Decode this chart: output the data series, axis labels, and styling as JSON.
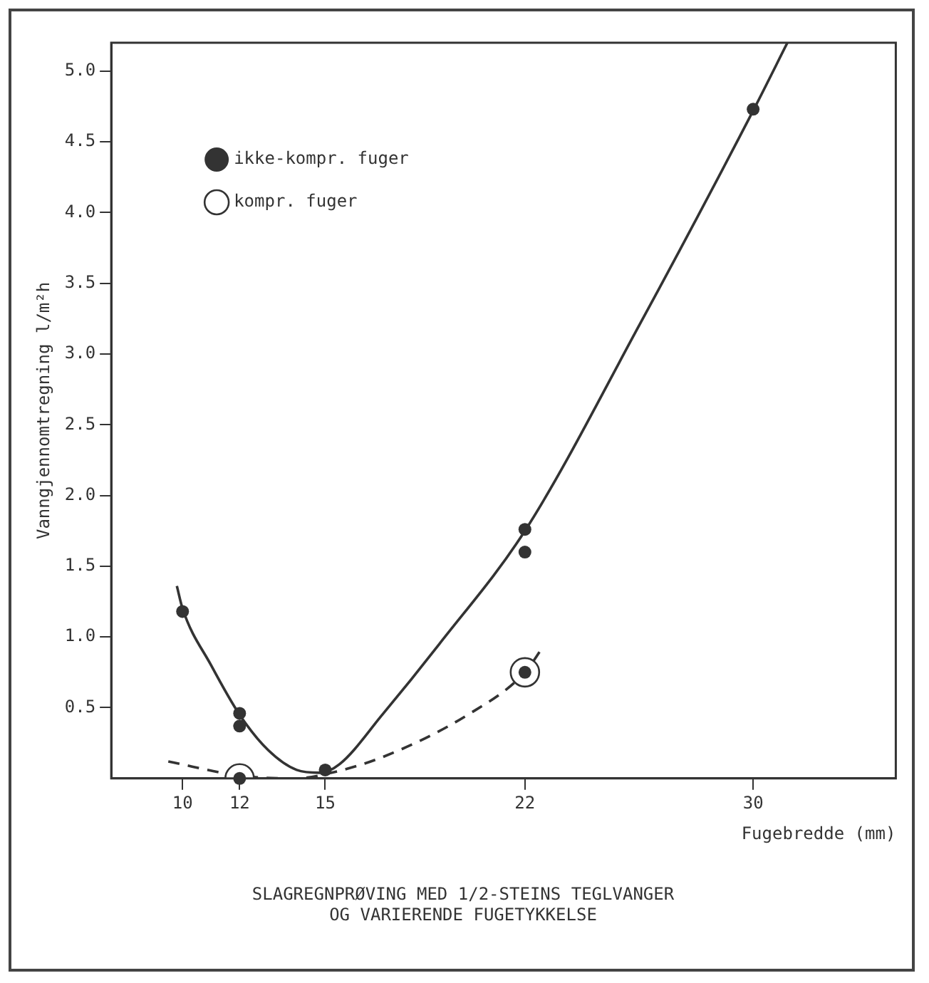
{
  "chart_data": {
    "type": "scatter",
    "title": "SLAGREGNPRØVING MED 1/2-STEINS TEGLVANGER\nOG VARIERENDE FUGETYKKELSE",
    "xlabel": "Fugebredde (mm)",
    "ylabel": "Vanngjennomtregning l/m²h",
    "xlim": [
      7.5,
      35
    ],
    "xticks": [
      10,
      12,
      15,
      22,
      30
    ],
    "ylim": [
      0,
      5.2
    ],
    "yticks": [
      {
        "value": 0.5,
        "label": "0.5"
      },
      {
        "value": 1,
        "label": "1.0"
      },
      {
        "value": 1.5,
        "label": "1.5"
      },
      {
        "value": 2,
        "label": "2.0"
      },
      {
        "value": 2.5,
        "label": "2.5"
      },
      {
        "value": 3,
        "label": "3.0"
      },
      {
        "value": 3.5,
        "label": "3.5"
      },
      {
        "value": 4,
        "label": "4.0"
      },
      {
        "value": 4.5,
        "label": "4.5"
      },
      {
        "value": 5,
        "label": "5.0"
      }
    ],
    "grid": false,
    "legend": "top left",
    "series": [
      {
        "name": "ikke-kompr. fuger",
        "type": "scatter",
        "marker": "circle",
        "color": "#333333",
        "x": [
          10,
          12,
          12,
          15,
          22,
          22,
          30
        ],
        "values": [
          1.18,
          0.46,
          0.37,
          0.06,
          1.76,
          1.6,
          4.73
        ]
      },
      {
        "name": "kompr. fuger",
        "type": "scatter",
        "marker": "circle",
        "color": "#333333",
        "x": [
          12,
          22
        ],
        "values": [
          0.0,
          0.75
        ]
      },
      {
        "type": "line",
        "marker": "none",
        "line_style": "solid",
        "color": "#333333",
        "x": [
          9.8,
          10,
          11,
          12,
          13,
          14,
          14.8,
          15.5,
          17,
          19,
          22,
          26,
          30,
          31.2
        ],
        "values": [
          1.36,
          1.2,
          0.8,
          0.45,
          0.2,
          0.06,
          0.04,
          0.1,
          0.45,
          0.95,
          1.75,
          3.2,
          4.72,
          5.2
        ]
      },
      {
        "type": "line",
        "marker": "none",
        "line_style": "dashed",
        "color": "#333333",
        "x": [
          9.5,
          12,
          14,
          15,
          17,
          20,
          22,
          22.6
        ],
        "values": [
          0.12,
          0.02,
          0.0,
          0.03,
          0.15,
          0.45,
          0.75,
          0.92
        ]
      }
    ]
  }
}
